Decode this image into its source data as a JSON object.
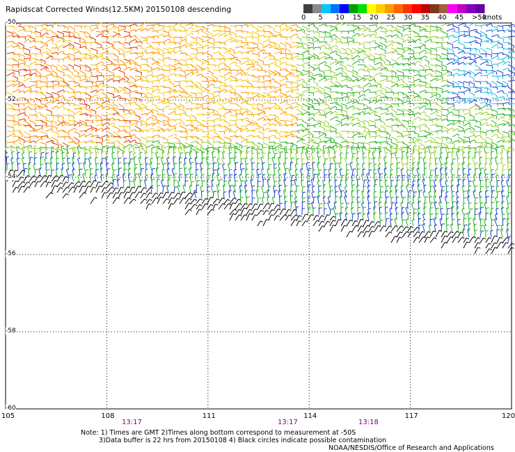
{
  "title": "Rapidscat Corrected Winds(12.5KM) 20150108 descending",
  "colorbar": {
    "labels": [
      "0",
      "5",
      "10",
      "15",
      "20",
      "25",
      "30",
      "35",
      "40",
      "45",
      ">50"
    ],
    "unit": "knots",
    "colors": [
      "#404040",
      "#8a8a8a",
      "#00c8ff",
      "#0070ff",
      "#0000ff",
      "#00a000",
      "#00e000",
      "#ffff00",
      "#ffcc00",
      "#ff9900",
      "#ff6600",
      "#ff3300",
      "#ff0000",
      "#c00000",
      "#7a3a1a",
      "#a06040",
      "#ff00ff",
      "#c000c0",
      "#8000c0",
      "#6000a0"
    ]
  },
  "map": {
    "lat_labels": [
      "-50",
      "-52",
      "-54",
      "-56",
      "-58",
      "-60"
    ],
    "lon_labels": [
      "105",
      "108",
      "111",
      "114",
      "117",
      "120"
    ],
    "time_labels": [
      "13:17",
      "13:17",
      "13:18"
    ],
    "wind_colors": {
      "orange": "#ff8c00",
      "yellow": "#f5c400",
      "light_green": "#9acd32",
      "green": "#20b020",
      "blue": "#1a3fd0",
      "cyan": "#20c0e0",
      "black": "#000000",
      "red": "#e03000"
    }
  },
  "notes": {
    "line1": "Note: 1) Times are GMT 2)Times along bottom correspond to measurement at -50S",
    "line2": "3)Data buffer is 22 hrs from 20150108 4) Black circles indicate possible contamination",
    "credit": "NOAA/NESDIS/Office of Research and Applications"
  }
}
